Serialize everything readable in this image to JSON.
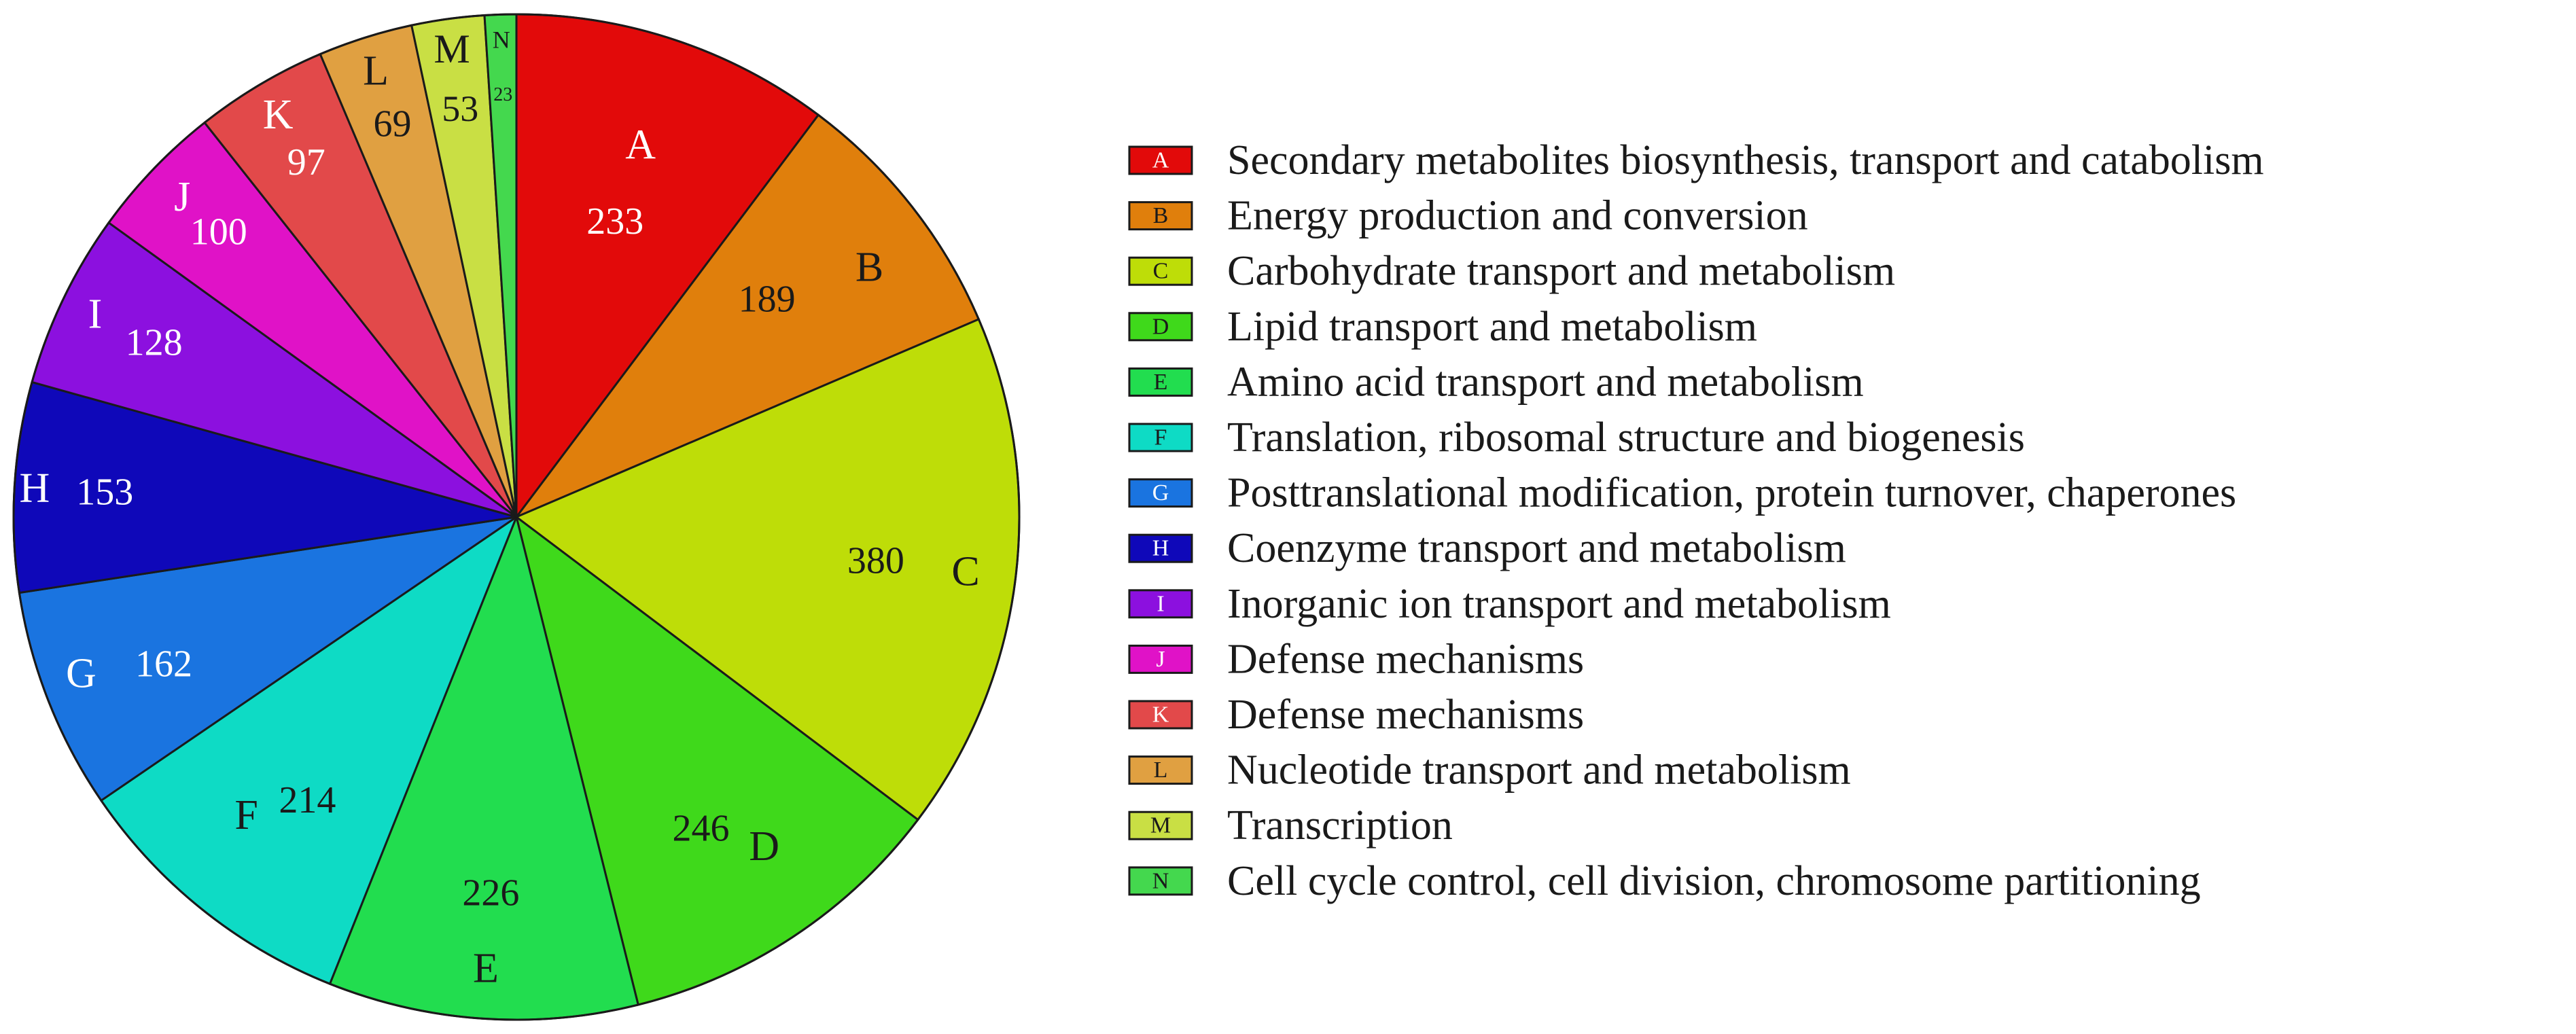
{
  "chart_data": {
    "type": "pie",
    "title": "",
    "legend_position": "right",
    "slices": [
      {
        "letter": "A",
        "value": 233,
        "color": "#e20a0a",
        "label_color": "#ffffff",
        "description": "Secondary metabolites biosynthesis, transport and catabolism"
      },
      {
        "letter": "B",
        "value": 189,
        "color": "#e07f0c",
        "label_color": "#1a1a1a",
        "description": "Energy production and conversion"
      },
      {
        "letter": "C",
        "value": 380,
        "color": "#bedd08",
        "label_color": "#1a1a1a",
        "description": "Carbohydrate transport and metabolism"
      },
      {
        "letter": "D",
        "value": 246,
        "color": "#3fd91b",
        "label_color": "#1a1a1a",
        "description": "Lipid transport and metabolism"
      },
      {
        "letter": "E",
        "value": 226,
        "color": "#22dd4f",
        "label_color": "#1a1a1a",
        "description": "Amino acid transport and metabolism"
      },
      {
        "letter": "F",
        "value": 214,
        "color": "#0edbc5",
        "label_color": "#1a1a1a",
        "description": "Translation, ribosomal structure and biogenesis"
      },
      {
        "letter": "G",
        "value": 162,
        "color": "#1a74e0",
        "label_color": "#ffffff",
        "description": "Posttranslational modification, protein turnover, chaperones"
      },
      {
        "letter": "H",
        "value": 153,
        "color": "#0f08b9",
        "label_color": "#ffffff",
        "description": "Coenzyme transport and metabolism"
      },
      {
        "letter": "I",
        "value": 128,
        "color": "#8c10df",
        "label_color": "#ffffff",
        "description": "Inorganic ion transport and metabolism"
      },
      {
        "letter": "J",
        "value": 100,
        "color": "#e012c7",
        "label_color": "#ffffff",
        "description": "Defense mechanisms"
      },
      {
        "letter": "K",
        "value": 97,
        "color": "#e2494a",
        "label_color": "#ffffff",
        "description": "Defense mechanisms"
      },
      {
        "letter": "L",
        "value": 69,
        "color": "#e0a041",
        "label_color": "#1a1a1a",
        "description": "Nucleotide transport and metabolism"
      },
      {
        "letter": "M",
        "value": 53,
        "color": "#c9df44",
        "label_color": "#1a1a1a",
        "description": "Transcription"
      },
      {
        "letter": "N",
        "value": 23,
        "color": "#44d84e",
        "label_color": "#1a1a1a",
        "description": "Cell cycle control, cell division, chromosome partitioning"
      }
    ]
  }
}
